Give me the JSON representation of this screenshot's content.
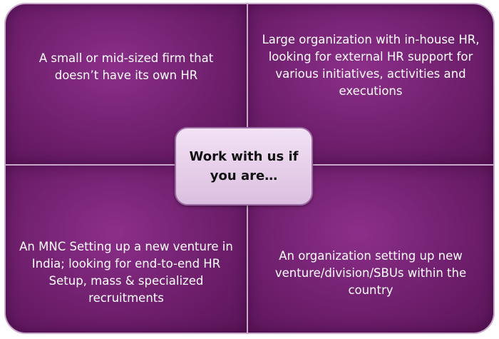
{
  "center": {
    "text": "Work with us if\nyou are…"
  },
  "quadrants": {
    "top_left": "A small or mid-sized firm that\ndoesn’t have its own HR",
    "top_right": "Large organization with in-house HR,\nlooking for external HR support for\nvarious initiatives, activities and\nexecutions",
    "bottom_left": "An MNC Setting up a new venture in\nIndia; looking for end-to-end HR\nSetup, mass & specialized\nrecruitments",
    "bottom_right": "An organization setting up new\nventure/division/SBUs within the\ncountry"
  },
  "colors": {
    "quadrant_fill": "#6f1f6d",
    "center_fill": "#e8d2eb",
    "border": "#c9a8cc"
  }
}
